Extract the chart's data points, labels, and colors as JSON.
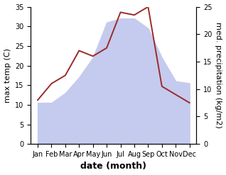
{
  "months": [
    "Jan",
    "Feb",
    "Mar",
    "Apr",
    "May",
    "Jun",
    "Jul",
    "Aug",
    "Sep",
    "Oct",
    "Nov",
    "Dec"
  ],
  "month_indices": [
    1,
    2,
    3,
    4,
    5,
    6,
    7,
    8,
    9,
    10,
    11,
    12
  ],
  "max_temp": [
    10.5,
    10.5,
    13.0,
    17.0,
    22.0,
    31.0,
    32.0,
    32.0,
    29.5,
    22.0,
    16.0,
    15.5
  ],
  "precipitation": [
    8.0,
    11.0,
    12.5,
    17.0,
    16.0,
    17.5,
    24.0,
    23.5,
    25.0,
    10.5,
    9.0,
    7.5
  ],
  "temp_fill_color": "#c5cbee",
  "precip_color": "#9b2a2a",
  "ylabel_left": "max temp (C)",
  "ylabel_right": "med. precipitation (kg/m2)",
  "xlabel": "date (month)",
  "ylim_left": [
    0,
    35
  ],
  "ylim_right": [
    0,
    25
  ],
  "yticks_left": [
    0,
    5,
    10,
    15,
    20,
    25,
    30,
    35
  ],
  "yticks_right": [
    0,
    5,
    10,
    15,
    20,
    25
  ],
  "bg_color": "#ffffff",
  "label_fontsize": 8,
  "tick_fontsize": 7,
  "xlabel_fontsize": 9
}
